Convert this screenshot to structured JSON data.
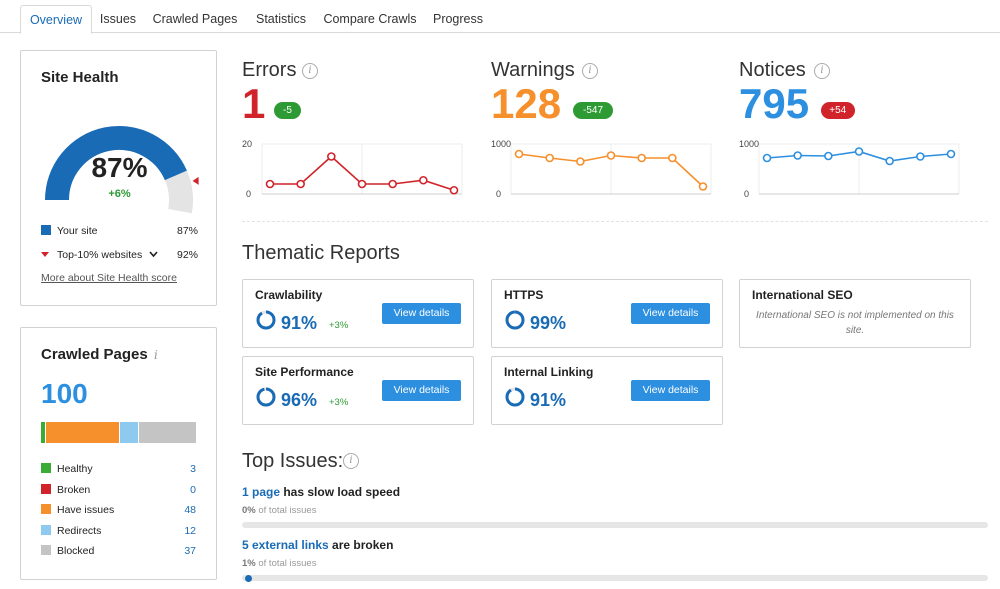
{
  "tabs": [
    "Overview",
    "Issues",
    "Crawled Pages",
    "Statistics",
    "Compare Crawls",
    "Progress"
  ],
  "site_health": {
    "title": "Site Health",
    "score": "87%",
    "delta": "+6%",
    "score_fraction": 0.87,
    "top10_fraction": 0.92,
    "legend": [
      {
        "label": "Your site",
        "value": "87%",
        "color": "#1a6bb5"
      },
      {
        "label": "Top-10% websites",
        "value": "92%",
        "color": "#d0242a"
      }
    ],
    "link": "More about Site Health score"
  },
  "crawled_pages": {
    "title": "Crawled Pages",
    "total": "100",
    "items": [
      {
        "label": "Healthy",
        "value": "3",
        "color": "#3aab35"
      },
      {
        "label": "Broken",
        "value": "0",
        "color": "#d0242a"
      },
      {
        "label": "Have issues",
        "value": "48",
        "color": "#f5902c"
      },
      {
        "label": "Redirects",
        "value": "12",
        "color": "#8ec9f0"
      },
      {
        "label": "Blocked",
        "value": "37",
        "color": "#c4c4c4"
      }
    ]
  },
  "metrics": [
    {
      "title": "Errors",
      "value": "1",
      "delta": "-5",
      "color": "#d0242a",
      "badge_color": "#2e9a34",
      "ymax": "20",
      "ymin": "0",
      "max": 20,
      "points": [
        4,
        4,
        15,
        4,
        4,
        5.5,
        1.5
      ]
    },
    {
      "title": "Warnings",
      "value": "128",
      "delta": "-547",
      "color": "#f5902c",
      "badge_color": "#2e9a34",
      "ymax": "1000",
      "ymin": "0",
      "max": 1000,
      "points": [
        800,
        720,
        650,
        770,
        720,
        720,
        150
      ]
    },
    {
      "title": "Notices",
      "value": "795",
      "delta": "+54",
      "color": "#2d8fe0",
      "badge_color": "#d0242a",
      "ymax": "1000",
      "ymin": "0",
      "max": 1000,
      "points": [
        720,
        770,
        760,
        850,
        660,
        750,
        800
      ]
    }
  ],
  "thematic": {
    "title": "Thematic Reports",
    "button_label": "View details",
    "reports": [
      {
        "name": "Crawlability",
        "pct": "91%",
        "fraction": 0.91,
        "delta": "+3%"
      },
      {
        "name": "HTTPS",
        "pct": "99%",
        "fraction": 0.99,
        "delta": ""
      },
      {
        "name": "International SEO",
        "note": "International SEO is not implemented on this site."
      },
      {
        "name": "Site Performance",
        "pct": "96%",
        "fraction": 0.96,
        "delta": "+3%"
      },
      {
        "name": "Internal Linking",
        "pct": "91%",
        "fraction": 0.91,
        "delta": ""
      }
    ]
  },
  "top_issues": {
    "title": "Top Issues:",
    "items": [
      {
        "link": "1 page",
        "text": " has slow load speed",
        "pct": "0%",
        "sub": " of total issues",
        "fraction": 0.0
      },
      {
        "link": "5 external links",
        "text": " are broken",
        "pct": "1%",
        "sub": " of total issues",
        "fraction": 0.01
      }
    ]
  }
}
